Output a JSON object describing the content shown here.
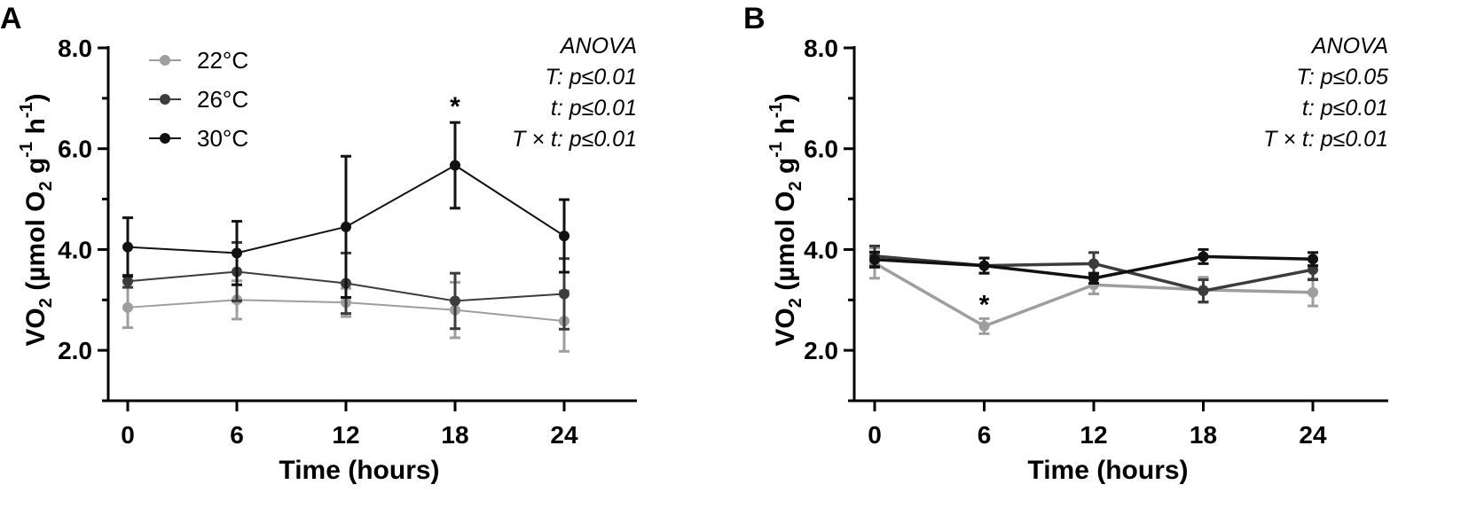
{
  "chart_data": [
    {
      "panel": "A",
      "type": "line",
      "xlabel": "Time (hours)",
      "ylabel": {
        "prefix": "VO",
        "sub": "2",
        "middle": " (µmol O",
        "sub2": "2",
        "after": " g",
        "sup": "-1",
        "end": " h",
        "sup2": "-1",
        "close": ")"
      },
      "x": [
        0,
        6,
        12,
        18,
        24
      ],
      "xticks": [
        "0",
        "6",
        "12",
        "18",
        "24"
      ],
      "yticks": [
        "2.0",
        "4.0",
        "6.0",
        "8.0"
      ],
      "ylim": [
        1.0,
        8.0
      ],
      "xlim": [
        -1,
        28
      ],
      "legend": {
        "placement": "top-left",
        "entries": [
          "22°C",
          "26°C",
          "30°C"
        ]
      },
      "anova": [
        "ANOVA",
        "T: p≤0.01",
        "t: p≤0.01",
        "T × t: p≤0.01"
      ],
      "series": [
        {
          "name": "22°C",
          "color": "#9e9e9e",
          "values": [
            2.85,
            3.0,
            2.95,
            2.8,
            2.58
          ],
          "errors": [
            0.4,
            0.38,
            0.28,
            0.55,
            0.6
          ]
        },
        {
          "name": "26°C",
          "color": "#3c3c3c",
          "values": [
            3.37,
            3.56,
            3.33,
            2.98,
            3.12
          ],
          "errors": [
            0.12,
            0.58,
            0.6,
            0.55,
            0.7
          ]
        },
        {
          "name": "30°C",
          "color": "#111111",
          "values": [
            4.05,
            3.93,
            4.45,
            5.67,
            4.27
          ],
          "errors": [
            0.58,
            0.63,
            1.4,
            0.85,
            0.72
          ]
        }
      ],
      "significance": [
        {
          "x": 18,
          "label": "*"
        }
      ]
    },
    {
      "panel": "B",
      "type": "line",
      "xlabel": "Time (hours)",
      "ylabel": {
        "prefix": "VO",
        "sub": "2",
        "middle": " (µmol O",
        "sub2": "2",
        "after": " g",
        "sup": "-1",
        "end": " h",
        "sup2": "-1",
        "close": ")"
      },
      "x": [
        0,
        6,
        12,
        18,
        24
      ],
      "xticks": [
        "0",
        "6",
        "12",
        "18",
        "24"
      ],
      "yticks": [
        "2.0",
        "4.0",
        "6.0",
        "8.0"
      ],
      "ylim": [
        1.0,
        8.0
      ],
      "xlim": [
        -1,
        28
      ],
      "anova": [
        "ANOVA",
        "T: p≤0.05",
        "t: p≤0.01",
        "T × t: p≤0.01"
      ],
      "series": [
        {
          "name": "22°C",
          "color": "#9e9e9e",
          "values": [
            3.73,
            2.48,
            3.3,
            3.2,
            3.15
          ],
          "errors": [
            0.3,
            0.15,
            0.18,
            0.25,
            0.27
          ]
        },
        {
          "name": "26°C",
          "color": "#3c3c3c",
          "values": [
            3.87,
            3.68,
            3.72,
            3.18,
            3.6
          ],
          "errors": [
            0.2,
            0.15,
            0.22,
            0.22,
            0.2
          ]
        },
        {
          "name": "30°C",
          "color": "#111111",
          "values": [
            3.8,
            3.68,
            3.43,
            3.86,
            3.81
          ],
          "errors": [
            0.15,
            0.15,
            0.1,
            0.14,
            0.13
          ]
        }
      ],
      "significance": [
        {
          "x": 6,
          "label": "*"
        }
      ]
    }
  ]
}
